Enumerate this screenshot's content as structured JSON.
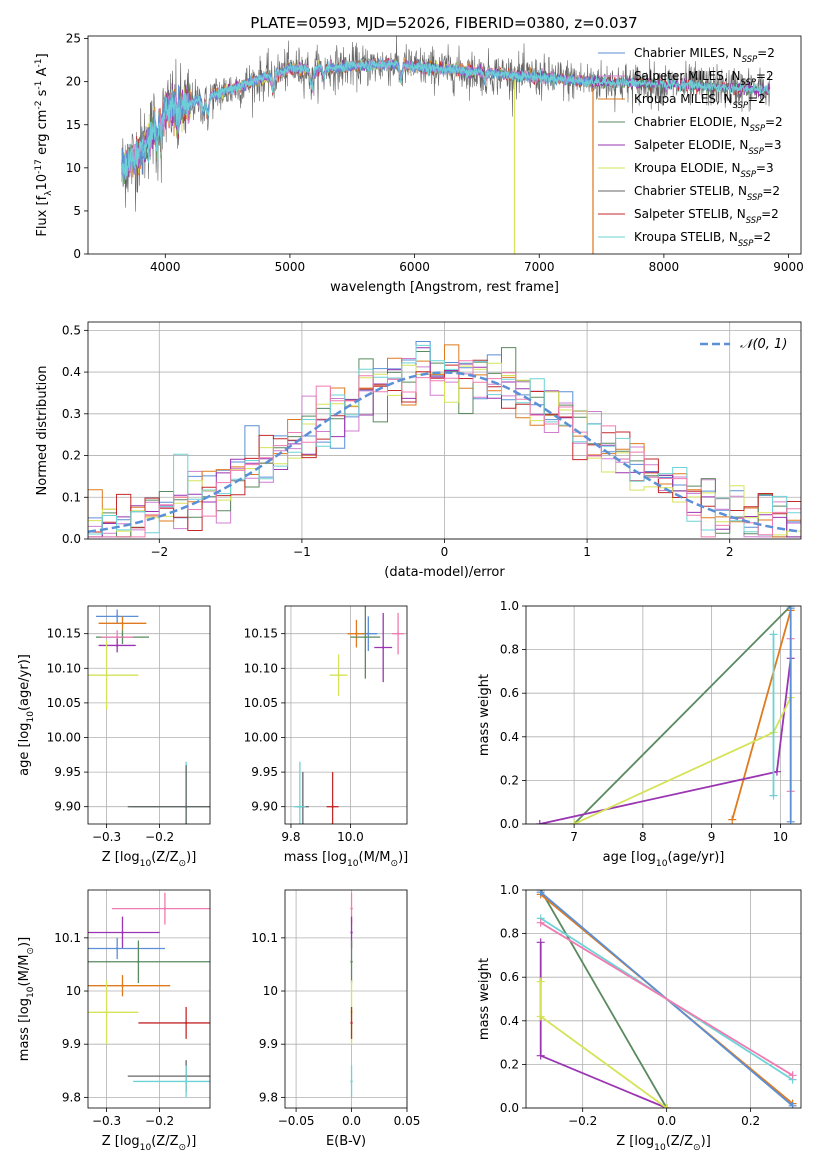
{
  "figure": {
    "title": "PLATE=0593, MJD=52026, FIBERID=0380, z=0.037"
  },
  "colors": {
    "Chabrier MILES": "#5b8fd6",
    "Salpeter MILES": "#cf7fd0",
    "Kroupa MILES": "#df7a1e",
    "Chabrier ELODIE": "#5a8a5f",
    "Salpeter ELODIE": "#9b35b3",
    "Kroupa ELODIE": "#d5e358",
    "Chabrier STELIB": "#666666",
    "Salpeter STELIB": "#c42a2a",
    "Kroupa STELIB": "#6dd3d6",
    "extra": "#f07bb0",
    "gauss": "#5b8fd6"
  },
  "chart_data": [
    {
      "type": "line",
      "xlabel": "wavelength [Angstrom, rest frame]",
      "ylabel": "Flux [f$_\\lambda$10$^{-17}$ erg cm$^{-2}$ s$^{-1}$ A$^{-1}$]",
      "xlim": [
        3380,
        9100
      ],
      "ylim": [
        0,
        25.3
      ],
      "xticks": [
        4000,
        5000,
        6000,
        7000,
        8000,
        9000
      ],
      "yticks": [
        0,
        5,
        10,
        15,
        20,
        25
      ],
      "legend_position": "top-right",
      "legend": [
        {
          "name": "Chabrier MILES",
          "nssp": "2"
        },
        {
          "name": "Salpeter MILES",
          "nssp": "2"
        },
        {
          "name": "Kroupa MILES",
          "nssp": "2"
        },
        {
          "name": "Chabrier ELODIE",
          "nssp": "2"
        },
        {
          "name": "Salpeter ELODIE",
          "nssp": "3"
        },
        {
          "name": "Kroupa ELODIE",
          "nssp": "3"
        },
        {
          "name": "Chabrier STELIB",
          "nssp": "2"
        },
        {
          "name": "Salpeter STELIB",
          "nssp": "2"
        },
        {
          "name": "Kroupa STELIB",
          "nssp": "2"
        }
      ],
      "continuum": [
        [
          3650,
          10
        ],
        [
          3750,
          11
        ],
        [
          3850,
          13
        ],
        [
          3950,
          16
        ],
        [
          4050,
          17
        ],
        [
          4200,
          17.5
        ],
        [
          4400,
          18.5
        ],
        [
          4700,
          20
        ],
        [
          5000,
          21.5
        ],
        [
          5300,
          21.5
        ],
        [
          5500,
          21.8
        ],
        [
          5800,
          22
        ],
        [
          6200,
          21.5
        ],
        [
          6600,
          21
        ],
        [
          7000,
          20.5
        ],
        [
          7400,
          20
        ],
        [
          7800,
          19.8
        ],
        [
          8200,
          19.6
        ],
        [
          8600,
          19.2
        ],
        [
          8850,
          19
        ]
      ],
      "model_cutoffs": {
        "Kroupa MILES": 7430,
        "Kroupa ELODIE": 6800
      }
    },
    {
      "type": "histogram",
      "xlabel": "(data-model)/error",
      "ylabel": "Normed distribution",
      "xlim": [
        -2.5,
        2.5
      ],
      "ylim": [
        0,
        0.52
      ],
      "xticks": [
        -2,
        -1,
        0,
        1,
        2
      ],
      "yticks": [
        0.0,
        0.1,
        0.2,
        0.3,
        0.4,
        0.5
      ],
      "bin_width": 0.1,
      "legend_label": "𝒩(0, 1)",
      "legend_position": "top-right",
      "grid": true
    },
    {
      "type": "errorbar",
      "xlabel": "Z [log$_{10}$(Z/Z$_\\odot$)]",
      "ylabel": "age  [log$_{10}$(age/yr)]",
      "xlim": [
        -0.335,
        -0.105
      ],
      "ylim": [
        9.875,
        10.19
      ],
      "xticks": [
        -0.3,
        -0.2
      ],
      "yticks": [
        9.9,
        9.95,
        10.0,
        10.05,
        10.1,
        10.15
      ],
      "grid": true,
      "points": [
        {
          "model": "Chabrier MILES",
          "x": -0.28,
          "y": 10.175,
          "xerr": 0.04,
          "yerr": 0.01
        },
        {
          "model": "Kroupa MILES",
          "x": -0.27,
          "y": 10.165,
          "xerr": 0.045,
          "yerr": 0.01
        },
        {
          "model": "Chabrier ELODIE",
          "x": -0.27,
          "y": 10.145,
          "xerr": 0.05,
          "yerr": 0.01
        },
        {
          "model": "extra",
          "x": -0.28,
          "y": 10.145,
          "xerr": 0.03,
          "yerr": 0.01
        },
        {
          "model": "Salpeter ELODIE",
          "x": -0.28,
          "y": 10.133,
          "xerr": 0.035,
          "yerr": 0.01
        },
        {
          "model": "Kroupa ELODIE",
          "x": -0.3,
          "y": 10.09,
          "xerr": 0.06,
          "yerr": 0.05
        },
        {
          "model": "Kroupa STELIB",
          "x": -0.15,
          "y": 9.9,
          "xerr": 0.1,
          "yerr": 0.065
        },
        {
          "model": "Chabrier STELIB",
          "x": -0.15,
          "y": 9.9,
          "xerr": 0.11,
          "yerr": 0.06
        }
      ]
    },
    {
      "type": "errorbar",
      "xlabel": "mass [log$_{10}$(M/M$_\\odot$)]",
      "ylabel": "",
      "xlim": [
        9.78,
        10.19
      ],
      "ylim": [
        9.875,
        10.19
      ],
      "xticks": [
        9.8,
        10.0
      ],
      "yticks": [
        9.9,
        9.95,
        10.0,
        10.05,
        10.1,
        10.15
      ],
      "grid": true,
      "points": [
        {
          "model": "extra",
          "x": 10.16,
          "y": 10.15,
          "xerr": 0.02,
          "yerr": 0.03
        },
        {
          "model": "Chabrier MILES",
          "x": 10.06,
          "y": 10.15,
          "xerr": 0.03,
          "yerr": 0.025
        },
        {
          "model": "Kroupa MILES",
          "x": 10.02,
          "y": 10.15,
          "xerr": 0.03,
          "yerr": 0.02
        },
        {
          "model": "Chabrier ELODIE",
          "x": 10.05,
          "y": 10.145,
          "xerr": 0.05,
          "yerr": 0.06
        },
        {
          "model": "Salpeter ELODIE",
          "x": 10.11,
          "y": 10.13,
          "xerr": 0.03,
          "yerr": 0.05
        },
        {
          "model": "Kroupa ELODIE",
          "x": 9.96,
          "y": 10.09,
          "xerr": 0.03,
          "yerr": 0.03
        },
        {
          "model": "Salpeter STELIB",
          "x": 9.94,
          "y": 9.9,
          "xerr": 0.02,
          "yerr": 0.05
        },
        {
          "model": "Chabrier STELIB",
          "x": 9.84,
          "y": 9.9,
          "xerr": 0.02,
          "yerr": 0.05
        },
        {
          "model": "Kroupa STELIB",
          "x": 9.83,
          "y": 9.9,
          "xerr": 0.02,
          "yerr": 0.065
        }
      ]
    },
    {
      "type": "line",
      "xlabel": "age  [log$_{10}$(age/yr)]",
      "ylabel": "mass weight",
      "xlim": [
        6.3,
        10.3
      ],
      "ylim": [
        0,
        1.0
      ],
      "xticks": [
        7,
        8,
        9,
        10
      ],
      "yticks": [
        0.0,
        0.2,
        0.4,
        0.6,
        0.8,
        1.0
      ],
      "grid": true,
      "series": [
        {
          "model": "Chabrier ELODIE",
          "x": [
            7.0,
            10.15
          ],
          "y": [
            0.0,
            1.0
          ]
        },
        {
          "model": "Kroupa MILES",
          "x": [
            9.3,
            10.15
          ],
          "y": [
            0.02,
            0.98
          ]
        },
        {
          "model": "Salpeter ELODIE",
          "x": [
            6.5,
            9.95,
            10.15
          ],
          "y": [
            0.0,
            0.24,
            0.76
          ]
        },
        {
          "model": "Kroupa ELODIE",
          "x": [
            7.0,
            9.9,
            10.15
          ],
          "y": [
            0.0,
            0.42,
            0.58
          ]
        },
        {
          "model": "Kroupa STELIB",
          "x": [
            9.9,
            9.9
          ],
          "y": [
            0.13,
            0.87
          ]
        },
        {
          "model": "extra",
          "x": [
            10.15,
            10.15
          ],
          "y": [
            0.15,
            0.85
          ]
        },
        {
          "model": "Chabrier MILES",
          "x": [
            10.15,
            10.15
          ],
          "y": [
            0.01,
            0.99
          ]
        }
      ]
    },
    {
      "type": "errorbar",
      "xlabel": "Z [log$_{10}$(Z/Z$_\\odot$)]",
      "ylabel": "mass [log$_{10}$(M/M$_\\odot$)]",
      "xlim": [
        -0.335,
        -0.105
      ],
      "ylim": [
        9.78,
        10.19
      ],
      "xticks": [
        -0.3,
        -0.2
      ],
      "yticks": [
        9.8,
        9.9,
        10.0,
        10.1
      ],
      "grid": true,
      "points": [
        {
          "model": "extra",
          "x": -0.19,
          "y": 10.155,
          "xerr": 0.1,
          "yerr": 0.03
        },
        {
          "model": "Salpeter ELODIE",
          "x": -0.27,
          "y": 10.11,
          "xerr": 0.07,
          "yerr": 0.03
        },
        {
          "model": "Chabrier MILES",
          "x": -0.28,
          "y": 10.08,
          "xerr": 0.09,
          "yerr": 0.02
        },
        {
          "model": "Chabrier ELODIE",
          "x": -0.24,
          "y": 10.055,
          "xerr": 0.14,
          "yerr": 0.04
        },
        {
          "model": "Kroupa MILES",
          "x": -0.27,
          "y": 10.01,
          "xerr": 0.09,
          "yerr": 0.02
        },
        {
          "model": "Kroupa ELODIE",
          "x": -0.3,
          "y": 9.96,
          "xerr": 0.06,
          "yerr": 0.06
        },
        {
          "model": "Salpeter STELIB",
          "x": -0.15,
          "y": 9.94,
          "xerr": 0.09,
          "yerr": 0.03
        },
        {
          "model": "Chabrier STELIB",
          "x": -0.15,
          "y": 9.84,
          "xerr": 0.11,
          "yerr": 0.03
        },
        {
          "model": "Kroupa STELIB",
          "x": -0.15,
          "y": 9.83,
          "xerr": 0.1,
          "yerr": 0.03
        }
      ]
    },
    {
      "type": "errorbar",
      "xlabel": "E(B-V)",
      "ylabel": "",
      "xlim": [
        -0.06,
        0.05
      ],
      "ylim": [
        9.78,
        10.19
      ],
      "xticks": [
        -0.05,
        0.0,
        0.05
      ],
      "yticks": [
        9.8,
        9.9,
        10.0,
        10.1
      ],
      "grid": true,
      "points": [
        {
          "model": "extra",
          "x": 0.0,
          "y": 10.155,
          "xerr": 0,
          "yerr": 0.03
        },
        {
          "model": "Salpeter ELODIE",
          "x": 0.0,
          "y": 10.11,
          "xerr": 0,
          "yerr": 0.03
        },
        {
          "model": "Chabrier ELODIE",
          "x": 0.0,
          "y": 10.055,
          "xerr": 0,
          "yerr": 0.04
        },
        {
          "model": "Kroupa ELODIE",
          "x": 0.0,
          "y": 9.96,
          "xerr": 0,
          "yerr": 0.06
        },
        {
          "model": "Salpeter STELIB",
          "x": 0.0,
          "y": 9.94,
          "xerr": 0,
          "yerr": 0.03
        },
        {
          "model": "Kroupa STELIB",
          "x": 0.0,
          "y": 9.83,
          "xerr": 0,
          "yerr": 0.03
        }
      ]
    },
    {
      "type": "line",
      "xlabel": "Z [log$_{10}$(Z/Z$_\\odot$)]",
      "ylabel": "mass weight",
      "xlim": [
        -0.335,
        0.32
      ],
      "ylim": [
        0,
        1.0
      ],
      "xticks": [
        -0.2,
        0.0,
        0.2
      ],
      "yticks": [
        0.0,
        0.2,
        0.4,
        0.6,
        0.8,
        1.0
      ],
      "grid": true,
      "series": [
        {
          "model": "Chabrier ELODIE",
          "x": [
            -0.3,
            0.0
          ],
          "y": [
            1.0,
            0.0
          ]
        },
        {
          "model": "Kroupa MILES",
          "x": [
            -0.3,
            0.3
          ],
          "y": [
            0.98,
            0.02
          ]
        },
        {
          "model": "Chabrier MILES",
          "x": [
            -0.3,
            0.3
          ],
          "y": [
            0.99,
            0.01
          ]
        },
        {
          "model": "Kroupa STELIB",
          "x": [
            -0.3,
            0.3
          ],
          "y": [
            0.87,
            0.13
          ]
        },
        {
          "model": "extra",
          "x": [
            -0.3,
            0.3
          ],
          "y": [
            0.85,
            0.15
          ]
        },
        {
          "model": "Salpeter ELODIE",
          "x": [
            -0.3,
            -0.3,
            0.0
          ],
          "y": [
            0.76,
            0.24,
            0.0
          ]
        },
        {
          "model": "Kroupa ELODIE",
          "x": [
            -0.3,
            -0.3,
            0.0
          ],
          "y": [
            0.58,
            0.42,
            0.0
          ]
        }
      ]
    }
  ]
}
